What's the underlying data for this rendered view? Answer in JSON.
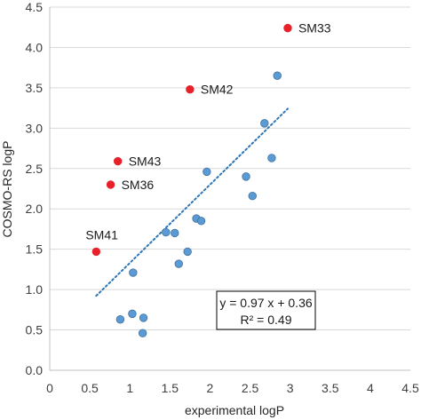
{
  "chart_data": {
    "type": "scatter",
    "title": "",
    "xlabel": "experimental logP",
    "ylabel": "COSMO-RS logP",
    "xlim": [
      0,
      4.5
    ],
    "ylim": [
      0,
      4.5
    ],
    "x_ticks": [
      "0",
      "0.5",
      "1",
      "1.5",
      "2",
      "2.5",
      "3",
      "3.5",
      "4",
      "4.5"
    ],
    "y_ticks": [
      "0.0",
      "0.5",
      "1.0",
      "1.5",
      "2.0",
      "2.5",
      "3.0",
      "3.5",
      "4.0",
      "4.5"
    ],
    "grid": "horizontal",
    "series": [
      {
        "color": "#5b9bd5",
        "edge_color": "#41719c",
        "points": [
          {
            "x": 0.88,
            "y": 0.63
          },
          {
            "x": 1.03,
            "y": 0.7
          },
          {
            "x": 1.17,
            "y": 0.65
          },
          {
            "x": 1.16,
            "y": 0.46
          },
          {
            "x": 1.04,
            "y": 1.21
          },
          {
            "x": 1.45,
            "y": 1.71
          },
          {
            "x": 1.56,
            "y": 1.7
          },
          {
            "x": 1.61,
            "y": 1.32
          },
          {
            "x": 1.72,
            "y": 1.47
          },
          {
            "x": 1.83,
            "y": 1.88
          },
          {
            "x": 1.89,
            "y": 1.85
          },
          {
            "x": 1.96,
            "y": 2.46
          },
          {
            "x": 2.45,
            "y": 2.4
          },
          {
            "x": 2.53,
            "y": 2.16
          },
          {
            "x": 2.68,
            "y": 3.06
          },
          {
            "x": 2.77,
            "y": 2.63
          },
          {
            "x": 2.84,
            "y": 3.65
          }
        ]
      },
      {
        "color": "#e8202a",
        "edge_color": "#e8202a",
        "points": [
          {
            "x": 2.97,
            "y": 4.24,
            "label": "SM33"
          },
          {
            "x": 1.75,
            "y": 3.48,
            "label": "SM42"
          },
          {
            "x": 0.85,
            "y": 2.59,
            "label": "SM43"
          },
          {
            "x": 0.76,
            "y": 2.3,
            "label": "SM36"
          },
          {
            "x": 0.58,
            "y": 1.47,
            "label": "SM41"
          }
        ]
      }
    ],
    "trendline": {
      "style": "dotted",
      "color": "#2e75b6",
      "slope": 0.97,
      "intercept": 0.36,
      "x_range": [
        0.58,
        2.97
      ]
    },
    "annotation": {
      "equation": "y = 0.97 x + 0.36",
      "r2": "R² = 0.49"
    }
  }
}
